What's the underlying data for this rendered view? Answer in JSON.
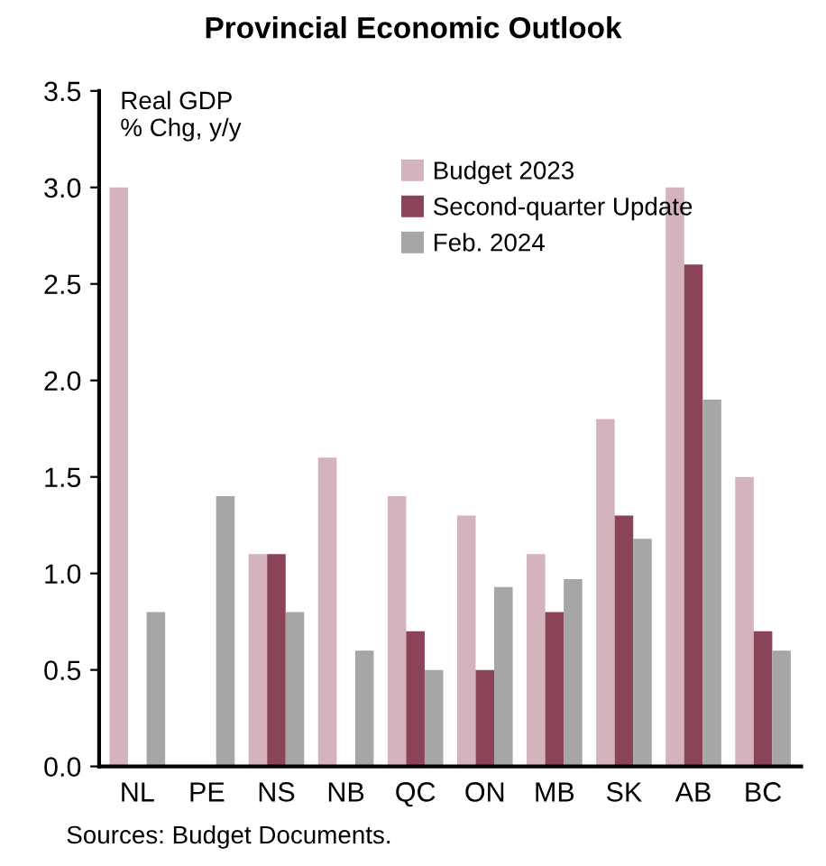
{
  "chart_data": {
    "type": "bar",
    "title": "Provincial Economic Outlook",
    "ylabel": "Real GDP\n% Chg, y/y",
    "categories": [
      "NL",
      "PE",
      "NS",
      "NB",
      "QC",
      "ON",
      "MB",
      "SK",
      "AB",
      "BC"
    ],
    "series": [
      {
        "name": "Budget 2023",
        "color": "#d4b3bd",
        "values": [
          3.0,
          null,
          1.1,
          1.6,
          1.4,
          1.3,
          1.1,
          1.8,
          3.0,
          1.5
        ]
      },
      {
        "name": "Second-quarter Update",
        "color": "#8b4358",
        "values": [
          null,
          null,
          1.1,
          null,
          0.7,
          0.5,
          0.8,
          1.3,
          2.6,
          0.7
        ]
      },
      {
        "name": "Feb. 2024",
        "color": "#a6a6a6",
        "values": [
          0.8,
          1.4,
          0.8,
          0.6,
          0.5,
          0.93,
          0.97,
          1.18,
          1.9,
          0.6
        ]
      }
    ],
    "ylim": [
      0,
      3.5
    ],
    "yticks": [
      {
        "value": 0,
        "label": "0.0"
      },
      0.5,
      {
        "value": 1,
        "label": "1.0"
      },
      1.5,
      {
        "value": 2,
        "label": "2.0"
      },
      2.5,
      {
        "value": 3,
        "label": "3.0"
      },
      3.5
    ],
    "grid": false,
    "legend": "top right",
    "annotations": [
      "Sources: Budget Documents."
    ]
  }
}
